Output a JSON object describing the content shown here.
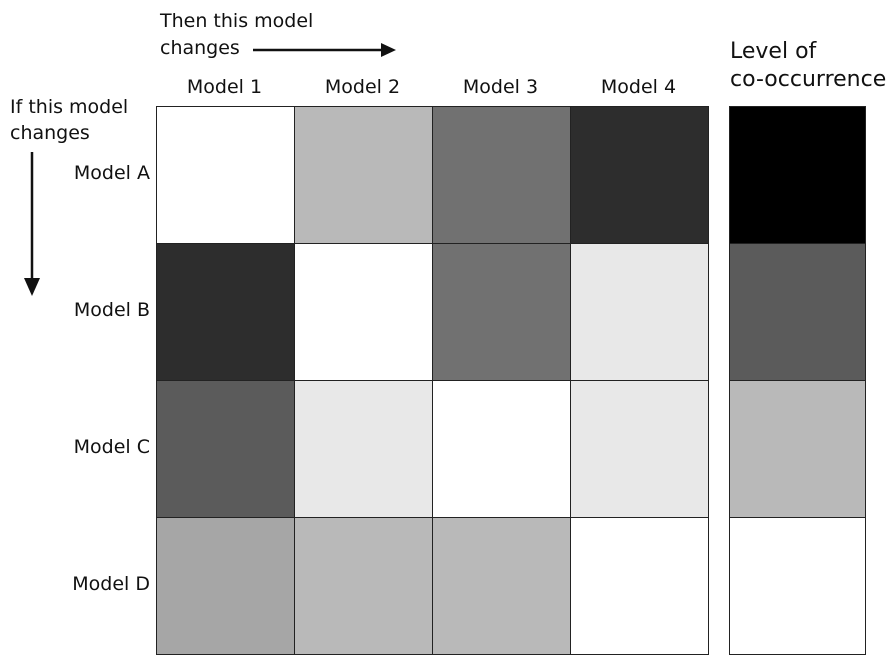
{
  "header": {
    "then_line1": "Then this model",
    "then_line2": "changes",
    "if_line1": "If this model",
    "if_line2": "changes"
  },
  "columns": [
    "Model 1",
    "Model 2",
    "Model 3",
    "Model 4"
  ],
  "rows": [
    "Model A",
    "Model B",
    "Model C",
    "Model D"
  ],
  "matrix_levels": [
    [
      0,
      1,
      2,
      3
    ],
    [
      3,
      0,
      2,
      0.5
    ],
    [
      2.5,
      0.5,
      0,
      0.5
    ],
    [
      1.5,
      1,
      1,
      0
    ]
  ],
  "level_colors": {
    "0": "#ffffff",
    "0.5": "#e8e8e8",
    "1": "#b9b9b9",
    "1.5": "#a6a6a6",
    "2": "#717171",
    "2.5": "#5b5b5b",
    "3": "#2d2d2d"
  },
  "legend": {
    "title_line1": "Level of",
    "title_line2": "co-occurrence",
    "swatches": [
      "#000000",
      "#5b5b5b",
      "#b9b9b9",
      "#ffffff"
    ]
  }
}
